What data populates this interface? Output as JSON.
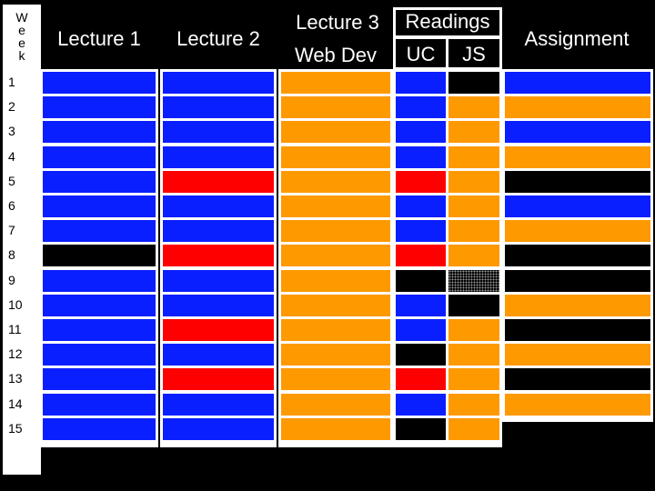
{
  "headers": {
    "week_letters": [
      "W",
      "e",
      "e",
      "k"
    ],
    "lecture1": "Lecture 1",
    "lecture2": "Lecture 2",
    "lecture3": "Lecture 3",
    "web_dev": "Web Dev",
    "readings": "Readings",
    "uc": "UC",
    "js": "JS",
    "assignment": "Assignment"
  },
  "weeks": [
    "1",
    "2",
    "3",
    "4",
    "5",
    "6",
    "7",
    "8",
    "9",
    "10",
    "11",
    "12",
    "13",
    "14",
    "15"
  ],
  "colors": {
    "blue": "#0a1fff",
    "orange": "#ff9900",
    "red": "#ff0000",
    "black": "#000000"
  },
  "grid": {
    "lecture1": [
      "blue",
      "blue",
      "blue",
      "blue",
      "blue",
      "blue",
      "blue",
      "black",
      "blue",
      "blue",
      "blue",
      "blue",
      "blue",
      "blue",
      "blue"
    ],
    "lecture2": [
      "blue",
      "blue",
      "blue",
      "blue",
      "red",
      "blue",
      "blue",
      "red",
      "blue",
      "blue",
      "red",
      "blue",
      "red",
      "blue",
      "blue"
    ],
    "lecture3": [
      "orange",
      "orange",
      "orange",
      "orange",
      "orange",
      "orange",
      "orange",
      "orange",
      "orange",
      "orange",
      "orange",
      "orange",
      "orange",
      "orange",
      "orange"
    ],
    "uc": [
      "blue",
      "blue",
      "blue",
      "blue",
      "red",
      "blue",
      "blue",
      "red",
      "black",
      "blue",
      "blue",
      "black",
      "red",
      "blue",
      "black"
    ],
    "js": [
      "black",
      "orange",
      "orange",
      "orange",
      "orange",
      "orange",
      "orange",
      "orange",
      "dots",
      "black",
      "orange",
      "orange",
      "orange",
      "orange",
      "orange"
    ],
    "assignment": [
      "blue",
      "orange",
      "blue",
      "orange",
      "black",
      "blue",
      "orange",
      "black",
      "black",
      "orange",
      "black",
      "orange",
      "black",
      "orange"
    ]
  }
}
